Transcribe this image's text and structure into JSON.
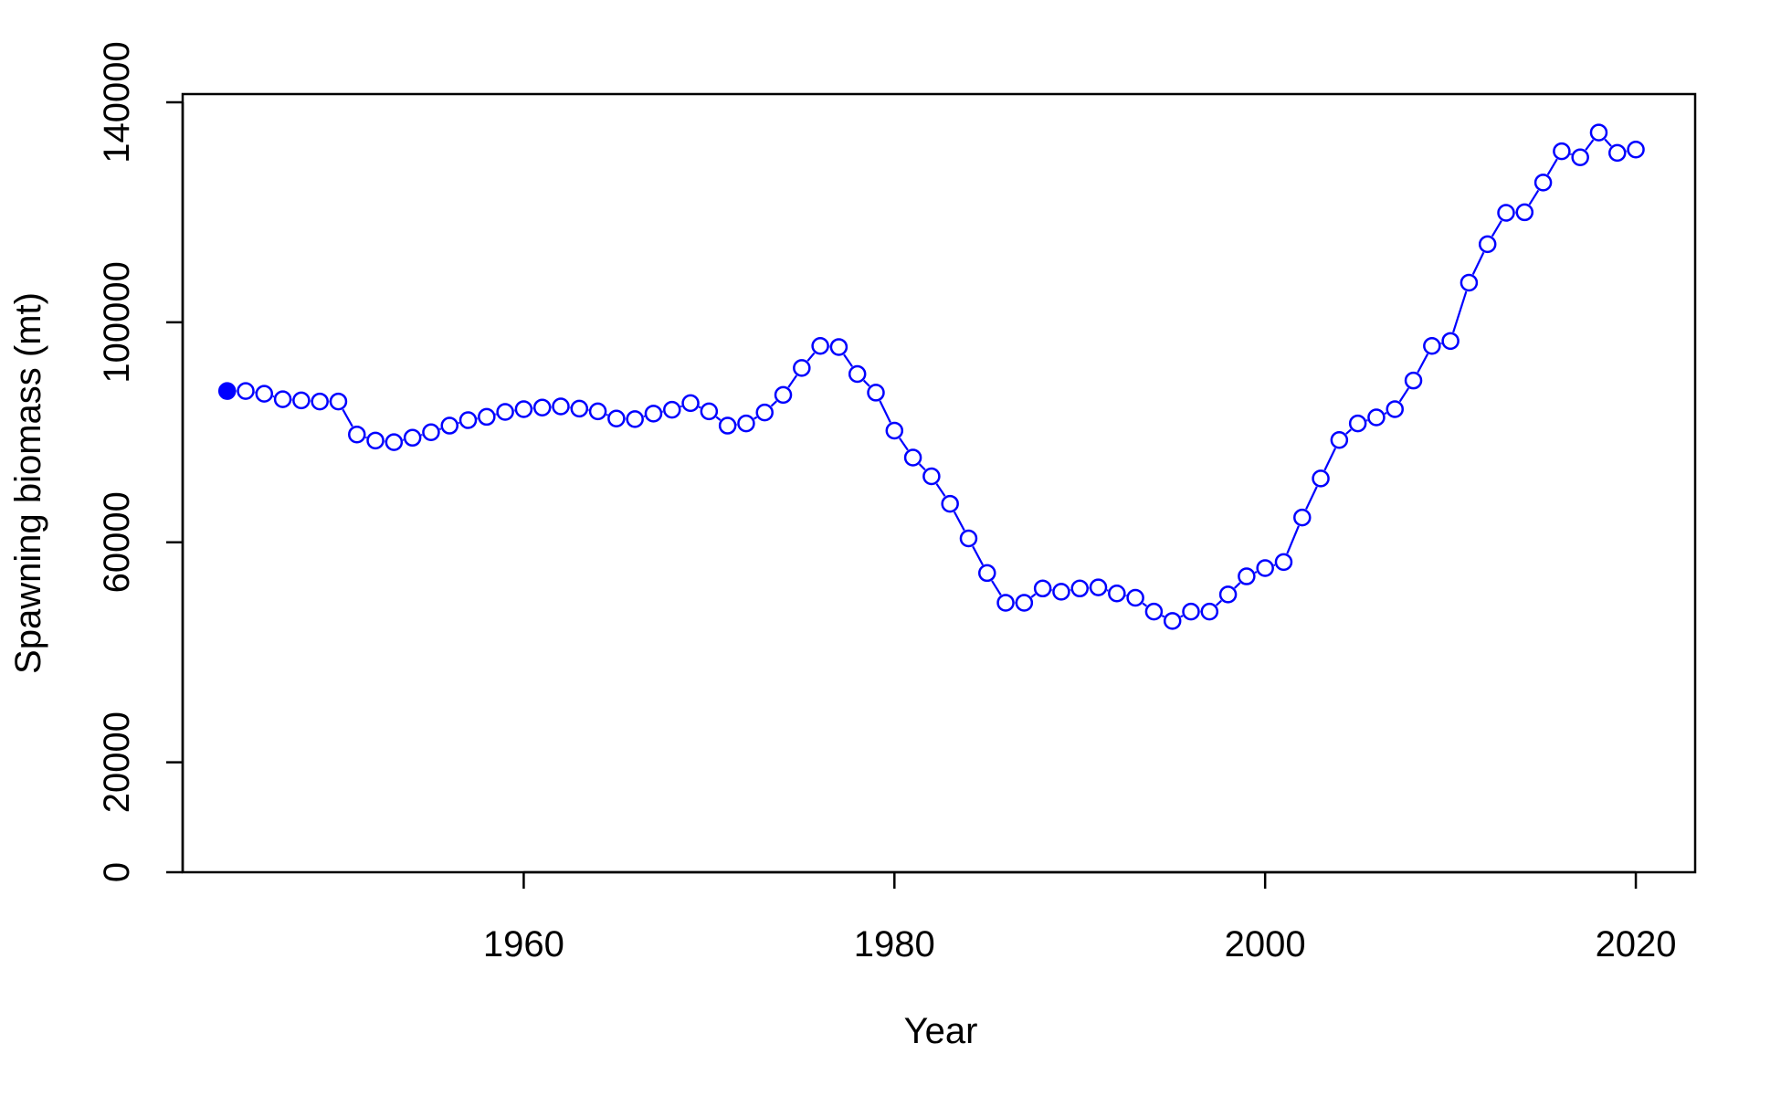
{
  "chart_data": {
    "type": "line",
    "title": "",
    "xlabel": "Year",
    "ylabel": "Spawning biomass (mt)",
    "xlim": [
      1941.6,
      2023.2
    ],
    "ylim": [
      0,
      140000
    ],
    "x_ticks": [
      1960,
      1980,
      2000,
      2020
    ],
    "y_ticks": [
      0,
      20000,
      60000,
      100000,
      140000
    ],
    "x_tick_labels": [
      "1960",
      "1980",
      "2000",
      "2020"
    ],
    "y_tick_labels": [
      "0",
      "20000",
      "60000",
      "100000",
      "140000"
    ],
    "grid": false,
    "legend": "none",
    "color": "#0000ff",
    "first_point_filled": true,
    "series": [
      {
        "x": [
          1944,
          1945,
          1946,
          1947,
          1948,
          1949,
          1950,
          1951,
          1952,
          1953,
          1954,
          1955,
          1956,
          1957,
          1958,
          1959,
          1960,
          1961,
          1962,
          1963,
          1964,
          1965,
          1966,
          1967,
          1968,
          1969,
          1970,
          1971,
          1972,
          1973,
          1974,
          1975,
          1976,
          1977,
          1978,
          1979,
          1980,
          1981,
          1982,
          1983,
          1984,
          1985,
          1986,
          1987,
          1988,
          1989,
          1990,
          1991,
          1992,
          1993,
          1994,
          1995,
          1996,
          1997,
          1998,
          1999,
          2000,
          2001,
          2002,
          2003,
          2004,
          2005,
          2006,
          2007,
          2008,
          2009,
          2010,
          2011,
          2012,
          2013,
          2014,
          2015,
          2016,
          2017,
          2018,
          2019,
          2020
        ],
        "values": [
          87500,
          87500,
          87000,
          86000,
          85800,
          85600,
          85600,
          79600,
          78500,
          78200,
          79000,
          80000,
          81200,
          82200,
          82800,
          83700,
          84200,
          84500,
          84700,
          84300,
          83800,
          82500,
          82400,
          83400,
          84100,
          85300,
          83800,
          81200,
          81600,
          83600,
          86800,
          91700,
          95700,
          95500,
          90600,
          87200,
          80300,
          75400,
          72000,
          67000,
          60700,
          54400,
          49000,
          49000,
          51600,
          51000,
          51600,
          51800,
          50700,
          49900,
          47400,
          45700,
          47400,
          47400,
          50500,
          53800,
          55300,
          56400,
          64500,
          71600,
          78600,
          81600,
          82700,
          84200,
          89400,
          95700,
          96600,
          107200,
          114200,
          119900,
          120000,
          125400,
          131100,
          130000,
          134500,
          130800,
          131400
        ]
      }
    ]
  }
}
